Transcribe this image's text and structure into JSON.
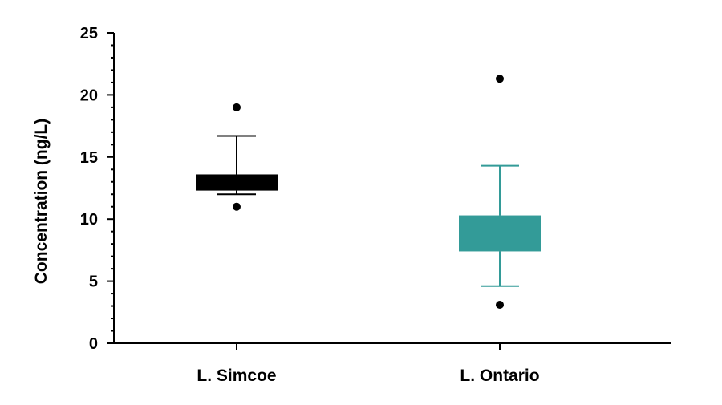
{
  "chart_data": {
    "type": "box",
    "title": "",
    "xlabel": "",
    "ylabel": "Concentration (ng/L)",
    "ylim": [
      0,
      25
    ],
    "yticks": [
      0,
      5,
      10,
      15,
      20,
      25
    ],
    "y_minor_step": 1,
    "grid": false,
    "legend": null,
    "categories": [
      "L. Simcoe",
      "L. Ontario"
    ],
    "series": [
      {
        "name": "L. Simcoe",
        "color": "#000000",
        "whisker_low": 12.0,
        "q1": 12.3,
        "q3": 13.6,
        "whisker_high": 16.7,
        "outliers": [
          19.0,
          11.0
        ]
      },
      {
        "name": "L. Ontario",
        "color": "#339b98",
        "whisker_low": 4.6,
        "q1": 7.4,
        "q3": 10.3,
        "whisker_high": 14.3,
        "outliers": [
          21.3,
          3.1
        ]
      }
    ]
  }
}
